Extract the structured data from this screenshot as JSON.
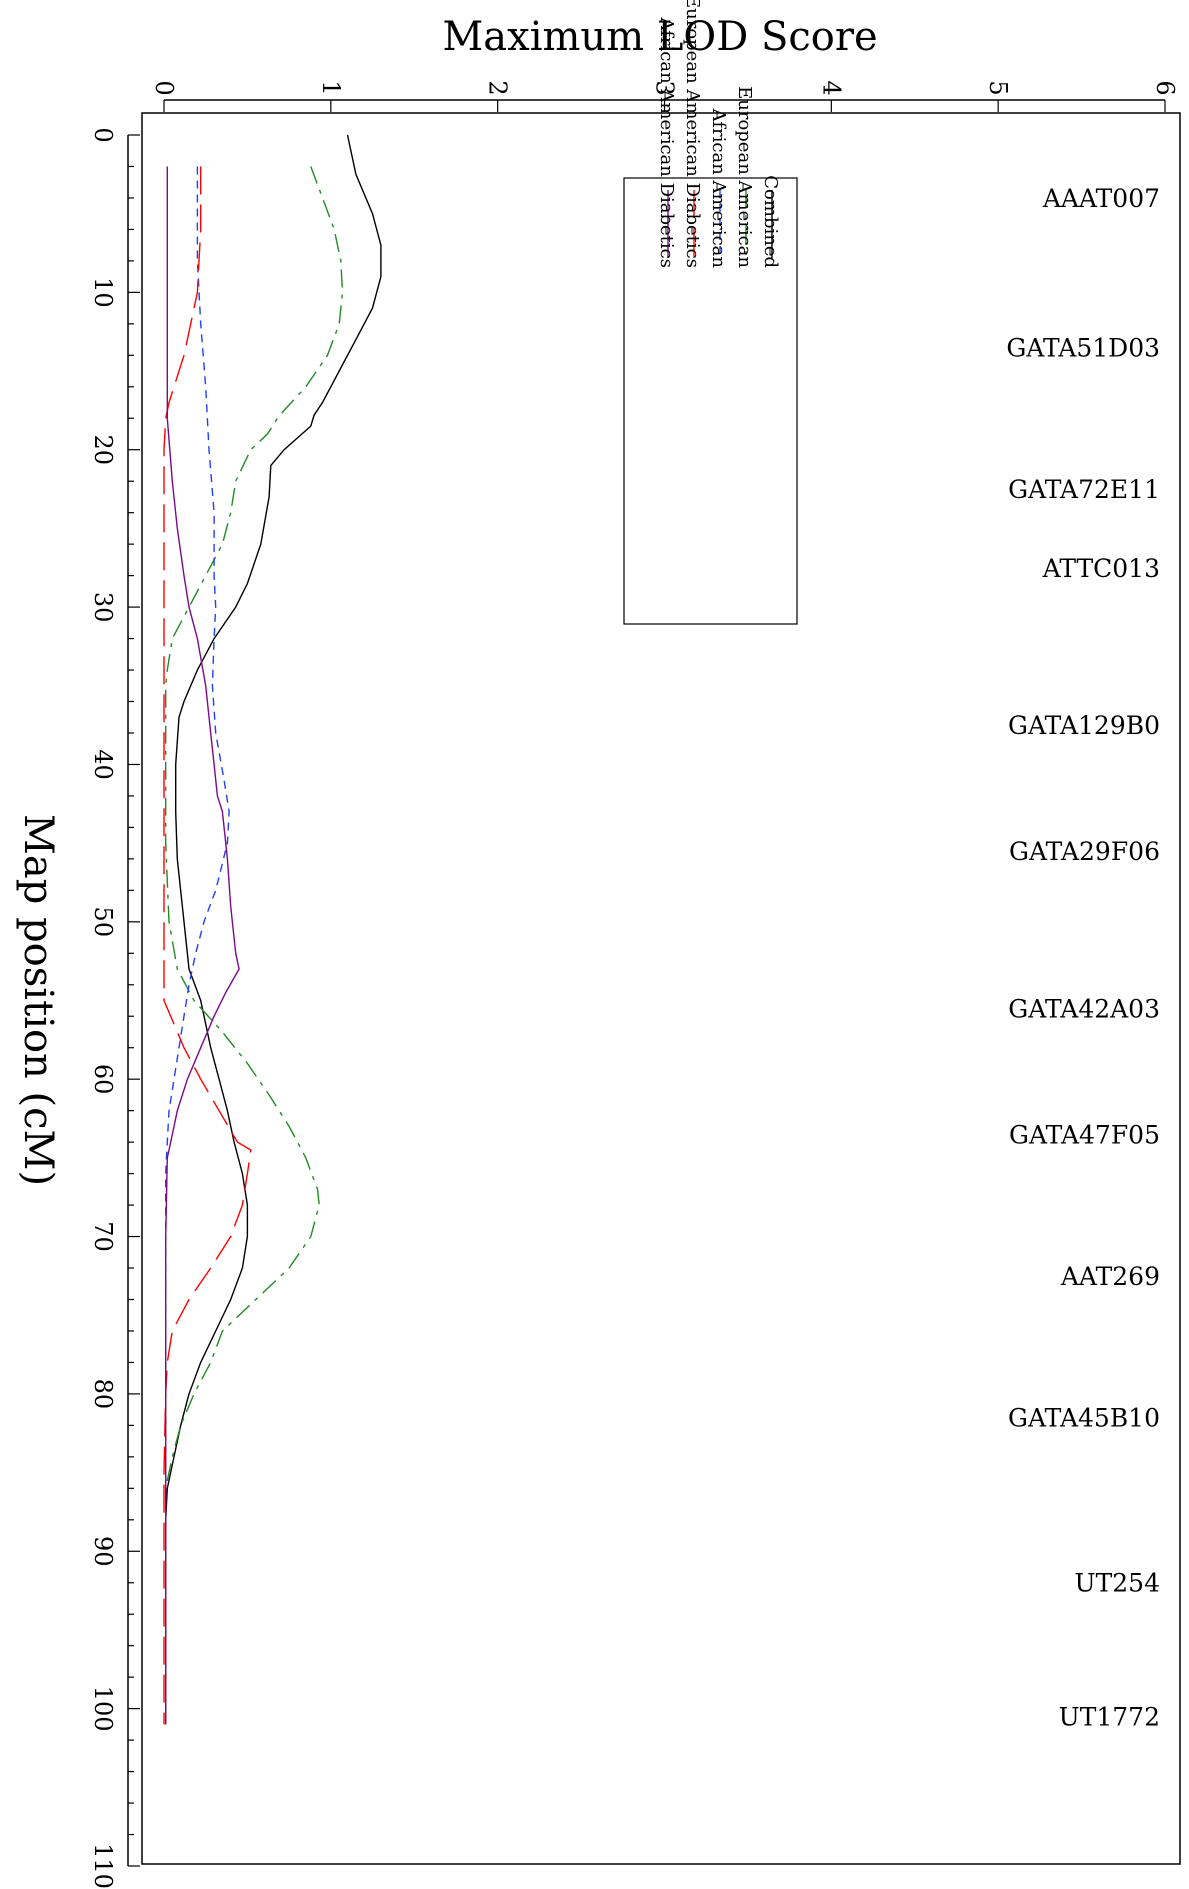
{
  "chart_data": {
    "type": "line",
    "orientation": "rotated-90",
    "xlabel": "Map position (cM)",
    "ylabel": "Maximum LOD Score",
    "xlim": [
      0,
      110
    ],
    "ylim": [
      0,
      6
    ],
    "x_ticks": [
      "0",
      "10",
      "20",
      "30",
      "40",
      "50",
      "60",
      "70",
      "80",
      "90",
      "100",
      "110"
    ],
    "y_ticks": [
      "0",
      "1",
      "2",
      "3",
      "4",
      "5",
      "6"
    ],
    "grid": false,
    "legend_position": "top-right",
    "markers": [
      {
        "label": "AAAT007",
        "pos": 4
      },
      {
        "label": "GATA51D03",
        "pos": 13.5
      },
      {
        "label": "GATA72E11",
        "pos": 22.5
      },
      {
        "label": "ATTC013",
        "pos": 27.5
      },
      {
        "label": "GATA129B0",
        "pos": 37.5
      },
      {
        "label": "GATA29F06",
        "pos": 45.5
      },
      {
        "label": "GATA42A03",
        "pos": 55.5
      },
      {
        "label": "GATA47F05",
        "pos": 63.5
      },
      {
        "label": "AAT269",
        "pos": 72.5
      },
      {
        "label": "GATA45B10",
        "pos": 81.5
      },
      {
        "label": "UT254",
        "pos": 92
      },
      {
        "label": "UT1772",
        "pos": 100.5
      }
    ],
    "series": [
      {
        "name": "Combined",
        "color": "#000000",
        "dash": "",
        "x": [
          0,
          2.5,
          5,
          7,
          9,
          11,
          13,
          15,
          17,
          17.8,
          18.5,
          20,
          21,
          23,
          26,
          28.5,
          30,
          32,
          34,
          36,
          37,
          40,
          43,
          46,
          50,
          53,
          55,
          58,
          60,
          62,
          64,
          66,
          68,
          70,
          72,
          74,
          76,
          78,
          80,
          82,
          84,
          86,
          88,
          92,
          96,
          101
        ],
        "y": [
          1.1,
          1.15,
          1.25,
          1.3,
          1.3,
          1.25,
          1.15,
          1.05,
          0.95,
          0.9,
          0.88,
          0.72,
          0.64,
          0.63,
          0.58,
          0.5,
          0.43,
          0.3,
          0.2,
          0.12,
          0.09,
          0.07,
          0.07,
          0.08,
          0.12,
          0.15,
          0.22,
          0.28,
          0.33,
          0.38,
          0.42,
          0.47,
          0.5,
          0.5,
          0.47,
          0.4,
          0.31,
          0.22,
          0.15,
          0.1,
          0.06,
          0.02,
          0.01,
          0.01,
          0.01,
          0.01
        ]
      },
      {
        "name": "European American",
        "color": "#228B22",
        "dash": "18 7 4 7",
        "x": [
          2,
          4,
          6,
          8,
          10,
          12,
          14,
          16,
          17.5,
          18,
          19,
          20,
          22,
          24,
          26,
          28,
          30,
          32,
          34,
          35,
          40,
          45,
          50,
          53,
          55,
          57,
          59,
          61,
          63,
          64,
          65,
          67,
          68,
          70,
          72,
          74,
          76,
          78,
          80,
          82,
          84,
          86
        ],
        "y": [
          0.88,
          0.95,
          1.02,
          1.06,
          1.07,
          1.05,
          0.98,
          0.85,
          0.72,
          0.68,
          0.62,
          0.52,
          0.43,
          0.4,
          0.35,
          0.25,
          0.15,
          0.05,
          0.02,
          0.01,
          0.01,
          0.01,
          0.03,
          0.08,
          0.18,
          0.35,
          0.5,
          0.63,
          0.75,
          0.8,
          0.85,
          0.92,
          0.93,
          0.88,
          0.75,
          0.55,
          0.35,
          0.28,
          0.18,
          0.1,
          0.05,
          0.01
        ]
      },
      {
        "name": "African American",
        "color": "#1f3fff",
        "dash": "8 6",
        "x": [
          2,
          5,
          8,
          12,
          16,
          20,
          24,
          28,
          30,
          32,
          35,
          38,
          41,
          43,
          45,
          48,
          50,
          52,
          54,
          56,
          58,
          60,
          62,
          64,
          66,
          70,
          80,
          90,
          101
        ],
        "y": [
          0.2,
          0.2,
          0.2,
          0.22,
          0.25,
          0.27,
          0.3,
          0.3,
          0.31,
          0.3,
          0.29,
          0.31,
          0.36,
          0.39,
          0.38,
          0.31,
          0.24,
          0.19,
          0.15,
          0.12,
          0.09,
          0.06,
          0.03,
          0.02,
          0.01,
          0.01,
          0.01,
          0.01,
          0.01
        ]
      },
      {
        "name": "European American Diabetics",
        "color": "#ff0000",
        "dash": "28 10",
        "x": [
          2,
          4,
          6,
          8,
          10,
          12,
          14,
          16,
          17,
          18,
          20,
          25,
          30,
          40,
          50,
          55,
          56.5,
          58,
          60,
          62,
          64,
          64.5,
          66,
          68,
          70,
          72,
          74,
          75,
          76,
          78,
          80,
          85,
          90,
          101
        ],
        "y": [
          0.22,
          0.22,
          0.22,
          0.21,
          0.2,
          0.16,
          0.12,
          0.06,
          0.03,
          0.01,
          0.0,
          0.0,
          0.0,
          0.0,
          0.0,
          0.0,
          0.06,
          0.12,
          0.22,
          0.33,
          0.44,
          0.52,
          0.5,
          0.47,
          0.4,
          0.28,
          0.15,
          0.1,
          0.05,
          0.02,
          0.01,
          0.0,
          0.0,
          0.0
        ]
      },
      {
        "name": "African American Diabetics",
        "color": "#7a0a8c",
        "dash": "",
        "x": [
          2,
          6,
          10,
          14,
          18,
          22,
          25,
          28,
          30,
          32,
          35,
          38,
          40,
          42,
          43,
          46,
          49,
          52,
          53,
          54.5,
          56,
          58,
          60,
          62,
          64,
          65,
          70,
          80,
          90,
          101
        ],
        "y": [
          0.02,
          0.02,
          0.02,
          0.02,
          0.02,
          0.05,
          0.08,
          0.12,
          0.15,
          0.2,
          0.25,
          0.28,
          0.3,
          0.32,
          0.35,
          0.38,
          0.4,
          0.43,
          0.45,
          0.37,
          0.3,
          0.22,
          0.14,
          0.08,
          0.04,
          0.02,
          0.01,
          0.01,
          0.01,
          0.01
        ]
      }
    ]
  }
}
